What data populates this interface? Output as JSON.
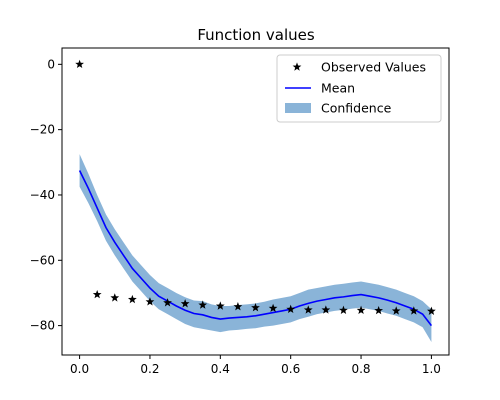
{
  "chart_data": {
    "type": "line",
    "title": "Function values",
    "xlabel": "",
    "ylabel": "",
    "xlim": [
      -0.05,
      1.05
    ],
    "ylim": [
      -89,
      5
    ],
    "xticks": [
      0.0,
      0.2,
      0.4,
      0.6,
      0.8,
      1.0
    ],
    "xtick_labels": [
      "0.0",
      "0.2",
      "0.4",
      "0.6",
      "0.8",
      "1.0"
    ],
    "yticks": [
      0,
      -20,
      -40,
      -60,
      -80
    ],
    "ytick_labels": [
      "0",
      "−20",
      "−40",
      "−60",
      "−80"
    ],
    "grid": false,
    "legend_position": "top-right",
    "colors": {
      "observed": "#000000",
      "mean": "#0000ff",
      "confidence": "#8ab4d8"
    },
    "series": [
      {
        "name": "Observed Values",
        "kind": "scatter-star",
        "x": [
          0.0,
          0.05,
          0.1,
          0.15,
          0.2,
          0.25,
          0.3,
          0.35,
          0.4,
          0.45,
          0.5,
          0.55,
          0.6,
          0.65,
          0.7,
          0.75,
          0.8,
          0.85,
          0.9,
          0.95,
          1.0
        ],
        "y": [
          0,
          -70.5,
          -71.5,
          -72,
          -72.7,
          -73,
          -73.3,
          -73.7,
          -74,
          -74.2,
          -74.5,
          -74.7,
          -75,
          -75.2,
          -75.2,
          -75.3,
          -75.3,
          -75.4,
          -75.5,
          -75.5,
          -75.6
        ]
      },
      {
        "name": "Mean",
        "kind": "line",
        "x": [
          0.0,
          0.025,
          0.05,
          0.075,
          0.1,
          0.125,
          0.15,
          0.175,
          0.2,
          0.225,
          0.25,
          0.275,
          0.3,
          0.325,
          0.35,
          0.375,
          0.4,
          0.425,
          0.45,
          0.475,
          0.5,
          0.525,
          0.55,
          0.575,
          0.6,
          0.625,
          0.65,
          0.675,
          0.7,
          0.725,
          0.75,
          0.775,
          0.8,
          0.825,
          0.85,
          0.875,
          0.9,
          0.925,
          0.95,
          0.975,
          1.0
        ],
        "y": [
          -32.5,
          -38,
          -44,
          -50,
          -54.5,
          -58.5,
          -62.5,
          -65.5,
          -68.5,
          -71,
          -72.5,
          -74,
          -75.3,
          -76.3,
          -76.7,
          -77.5,
          -78,
          -77.7,
          -77.5,
          -77.3,
          -77,
          -76.5,
          -76,
          -75.5,
          -75,
          -74,
          -73.2,
          -72.5,
          -72,
          -71.5,
          -71.2,
          -70.8,
          -70.5,
          -71,
          -71.5,
          -72.2,
          -73,
          -74,
          -75,
          -76.5,
          -80
        ]
      },
      {
        "name": "Confidence",
        "kind": "band",
        "x": [
          0.0,
          0.025,
          0.05,
          0.075,
          0.1,
          0.125,
          0.15,
          0.175,
          0.2,
          0.225,
          0.25,
          0.275,
          0.3,
          0.325,
          0.35,
          0.375,
          0.4,
          0.425,
          0.45,
          0.475,
          0.5,
          0.525,
          0.55,
          0.575,
          0.6,
          0.625,
          0.65,
          0.675,
          0.7,
          0.725,
          0.75,
          0.775,
          0.8,
          0.825,
          0.85,
          0.875,
          0.9,
          0.925,
          0.95,
          0.975,
          1.0
        ],
        "lower": [
          -37.5,
          -42.5,
          -48,
          -54,
          -58.5,
          -62.5,
          -66.5,
          -69.5,
          -72.5,
          -75,
          -76.5,
          -78,
          -79.5,
          -80.5,
          -81,
          -81.5,
          -82,
          -81.5,
          -81.3,
          -81,
          -80.8,
          -80.3,
          -80,
          -79.5,
          -79,
          -78,
          -77.3,
          -76.5,
          -76,
          -75.5,
          -75.2,
          -74.8,
          -74.5,
          -75,
          -75.5,
          -76.3,
          -77,
          -78,
          -79,
          -80.5,
          -85
        ],
        "upper": [
          -27.5,
          -33.5,
          -40,
          -46,
          -50.5,
          -54.5,
          -58.5,
          -61.5,
          -64.5,
          -67,
          -68.5,
          -70,
          -71.3,
          -72.3,
          -72.5,
          -73.5,
          -74,
          -74,
          -73.7,
          -73.5,
          -73.2,
          -72.7,
          -72,
          -71.5,
          -71,
          -70,
          -69,
          -68.5,
          -68,
          -67.5,
          -67.2,
          -66.8,
          -66.5,
          -67,
          -67.5,
          -68.2,
          -69,
          -70,
          -71,
          -72.5,
          -75
        ]
      }
    ]
  }
}
